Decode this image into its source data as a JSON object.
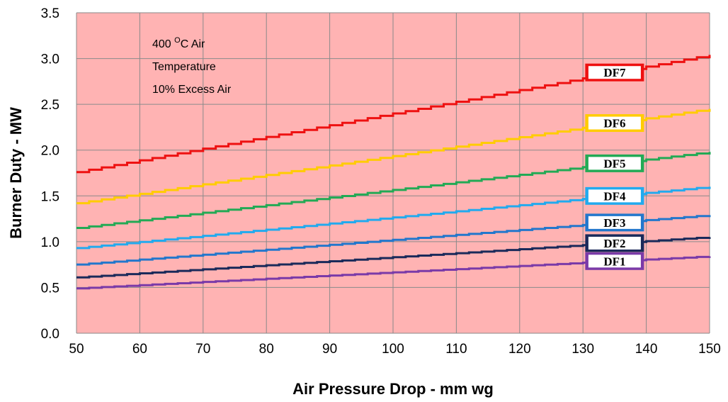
{
  "chart_data": {
    "type": "line",
    "title": "",
    "xlabel": "Air Pressure Drop - mm wg",
    "ylabel": "Burner Duty - MW",
    "xlim": [
      50,
      150
    ],
    "ylim": [
      0,
      3.5
    ],
    "x_ticks": [
      50,
      60,
      70,
      80,
      90,
      100,
      110,
      120,
      130,
      140,
      150
    ],
    "y_ticks": [
      "0.0",
      "0.5",
      "1.0",
      "1.5",
      "2.0",
      "2.5",
      "3.0",
      "3.5"
    ],
    "grid": true,
    "plot_background": "#ffb3b3",
    "annotation": {
      "line1_prefix": "400 ",
      "line1_sup": "O",
      "line1_suffix": "C Air",
      "line2": "Temperature",
      "line3": "10% Excess Air"
    },
    "series": [
      {
        "name": "DF7",
        "color": "#ee1111",
        "x": [
          50,
          150
        ],
        "y": [
          1.76,
          3.04
        ]
      },
      {
        "name": "DF6",
        "color": "#ffcc00",
        "x": [
          50,
          150
        ],
        "y": [
          1.42,
          2.45
        ]
      },
      {
        "name": "DF5",
        "color": "#22aa55",
        "x": [
          50,
          150
        ],
        "y": [
          1.15,
          1.98
        ]
      },
      {
        "name": "DF4",
        "color": "#22aaee",
        "x": [
          50,
          150
        ],
        "y": [
          0.93,
          1.6
        ]
      },
      {
        "name": "DF3",
        "color": "#2277cc",
        "x": [
          50,
          150
        ],
        "y": [
          0.75,
          1.29
        ]
      },
      {
        "name": "DF2",
        "color": "#1a2a5a",
        "x": [
          50,
          150
        ],
        "y": [
          0.61,
          1.05
        ]
      },
      {
        "name": "DF1",
        "color": "#7a3aa8",
        "x": [
          50,
          150
        ],
        "y": [
          0.49,
          0.84
        ]
      }
    ],
    "series_labels_at_x": 135
  }
}
